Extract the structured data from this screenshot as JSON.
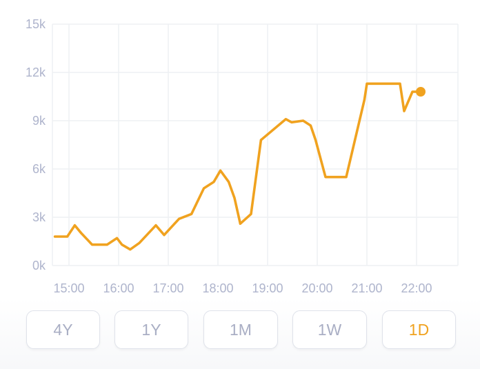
{
  "colors": {
    "line": "#f0a21f",
    "grid": "#eef0f4",
    "tick": "#aeb4cc",
    "button_border": "#dfe2ea",
    "button_text": "#a9aec4",
    "button_active_text": "#f0a21f"
  },
  "chart_data": {
    "type": "line",
    "title": "",
    "xlabel": "",
    "ylabel": "",
    "grid": true,
    "ylim": [
      0,
      15000
    ],
    "xlim": [
      "14:40",
      "22:50"
    ],
    "yticks": [
      {
        "value": 0,
        "label": "0k"
      },
      {
        "value": 3000,
        "label": "3k"
      },
      {
        "value": 6000,
        "label": "6k"
      },
      {
        "value": 9000,
        "label": "9k"
      },
      {
        "value": 12000,
        "label": "12k"
      },
      {
        "value": 15000,
        "label": "15k"
      }
    ],
    "xticks": [
      "15:00",
      "16:00",
      "17:00",
      "18:00",
      "19:00",
      "20:00",
      "21:00",
      "22:00"
    ],
    "series": [
      {
        "x": [
          "14:43",
          "14:58",
          "15:07",
          "15:15",
          "15:28",
          "15:46",
          "15:58",
          "16:04",
          "16:14",
          "16:25",
          "16:45",
          "16:55",
          "17:13",
          "17:28",
          "17:43",
          "17:55",
          "18:03",
          "18:13",
          "18:20",
          "18:27",
          "18:40",
          "18:52",
          "19:22",
          "19:29",
          "19:43",
          "19:52",
          "19:58",
          "20:10",
          "20:35",
          "20:57",
          "21:00",
          "21:12",
          "21:28",
          "21:40",
          "21:45",
          "21:55",
          "22:05"
        ],
        "y": [
          1800,
          1800,
          2500,
          2000,
          1300,
          1300,
          1700,
          1300,
          1000,
          1400,
          2500,
          1900,
          2900,
          3200,
          4800,
          5200,
          5900,
          5200,
          4200,
          2600,
          3200,
          7800,
          9100,
          8900,
          9000,
          8700,
          7800,
          5500,
          5500,
          10300,
          11300,
          11300,
          11300,
          11300,
          9600,
          10800,
          10800
        ],
        "marker_last": true
      }
    ]
  },
  "range_selector": {
    "options": [
      "4Y",
      "1Y",
      "1M",
      "1W",
      "1D"
    ],
    "selected": "1D"
  }
}
